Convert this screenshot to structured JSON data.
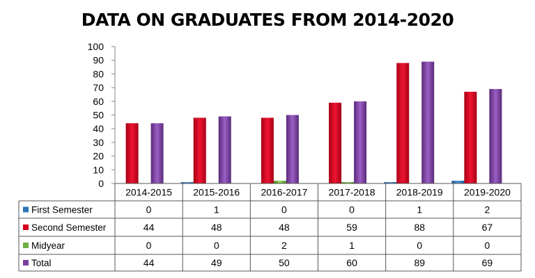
{
  "chart_data": {
    "type": "bar",
    "title": "DATA ON GRADUATES FROM 2014-2020",
    "xlabel": "",
    "ylabel": "",
    "categories": [
      "2014-2015",
      "2015-2016",
      "2016-2017",
      "2017-2018",
      "2018-2019",
      "2019-2020"
    ],
    "ylim": [
      0,
      100
    ],
    "yticks": [
      0,
      10,
      20,
      30,
      40,
      50,
      60,
      70,
      80,
      90,
      100
    ],
    "grid": false,
    "legend": "data-table",
    "series": [
      {
        "name": "First Semester",
        "values": [
          0,
          1,
          0,
          0,
          1,
          2
        ],
        "color": "#2e75b6"
      },
      {
        "name": "Second Semester",
        "values": [
          44,
          48,
          48,
          59,
          88,
          67
        ],
        "color": "#d6001c"
      },
      {
        "name": "Midyear",
        "values": [
          0,
          0,
          2,
          1,
          0,
          0
        ],
        "color": "#70ad47"
      },
      {
        "name": "Total",
        "values": [
          44,
          49,
          50,
          60,
          89,
          69
        ],
        "color": "#7b3fa0"
      }
    ]
  }
}
